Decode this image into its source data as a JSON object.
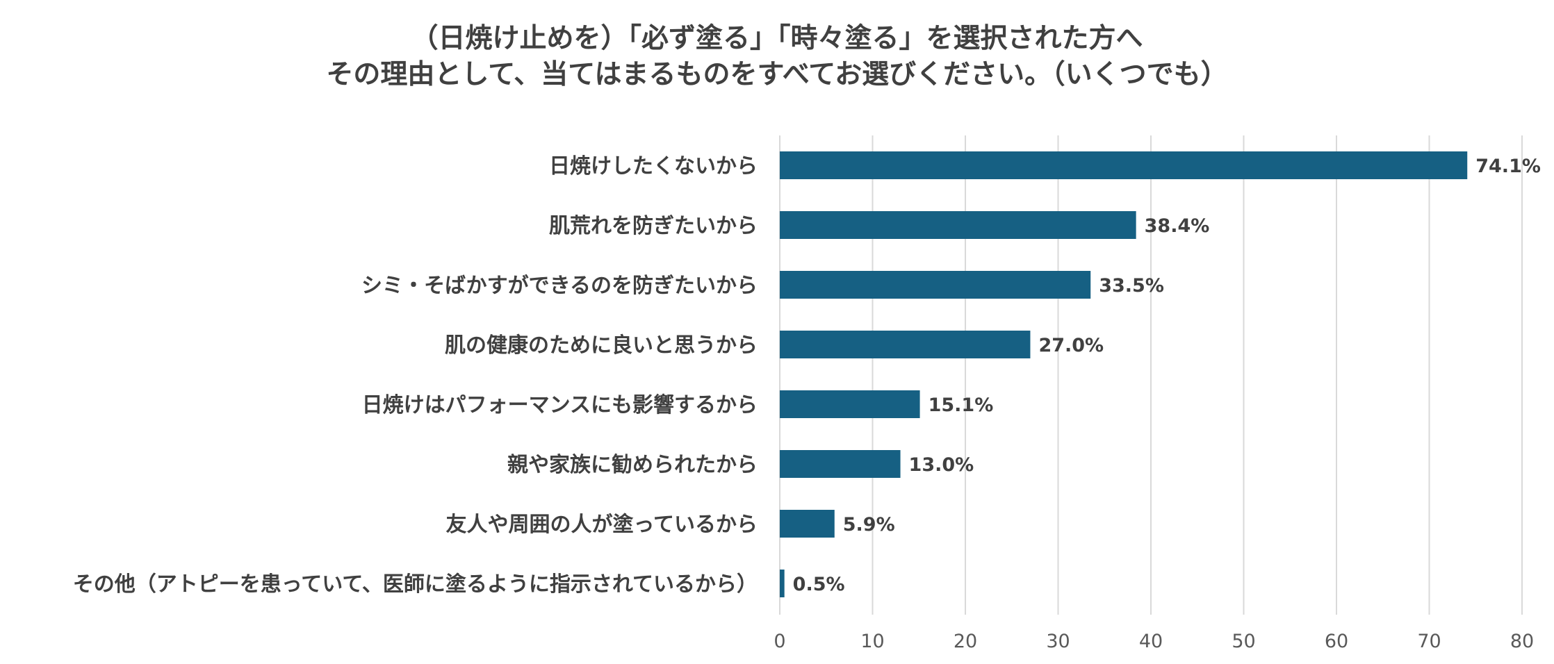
{
  "chart_data": {
    "type": "bar",
    "orientation": "horizontal",
    "title": [
      "（日焼け止めを）「必ず塗る」「時々塗る」を選択された方へ",
      "その理由として、当てはまるものをすべてお選びください。（いくつでも）"
    ],
    "categories": [
      "日焼けしたくないから",
      "肌荒れを防ぎたいから",
      "シミ・そばかすができるのを防ぎたいから",
      "肌の健康のために良いと思うから",
      "日焼けはパフォーマンスにも影響するから",
      "親や家族に勧められたから",
      "友人や周囲の人が塗っているから",
      "その他（アトピーを患っていて、医師に塗るように指示されているから）"
    ],
    "values": [
      74.1,
      38.4,
      33.5,
      27.0,
      15.1,
      13.0,
      5.9,
      0.5
    ],
    "value_labels": [
      "74.1%",
      "38.4%",
      "33.5%",
      "27.0%",
      "15.1%",
      "13.0%",
      "5.9%",
      "0.5%"
    ],
    "xlim": [
      0,
      80
    ],
    "xticks": [
      "0",
      "10",
      "20",
      "30",
      "40",
      "50",
      "60",
      "70",
      "80"
    ],
    "grid": true,
    "legend": "none",
    "bar_color": "#166083"
  }
}
